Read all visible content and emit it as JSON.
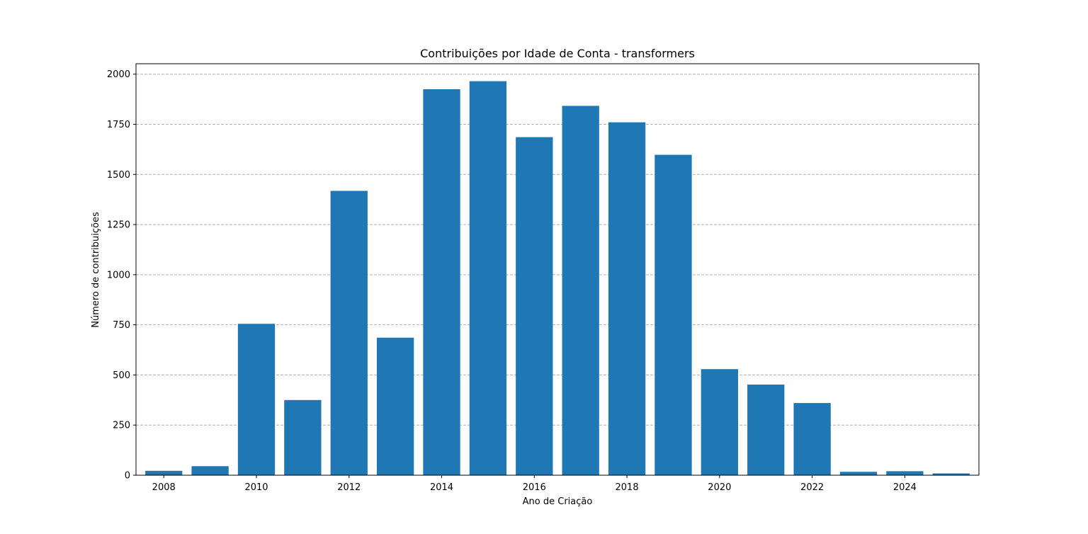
{
  "chart_data": {
    "type": "bar",
    "title": "Contribuições por Idade de Conta - transformers",
    "xlabel": "Ano de Criação",
    "ylabel": "Número de contribuições",
    "categories": [
      2008,
      2009,
      2010,
      2011,
      2012,
      2013,
      2014,
      2015,
      2016,
      2017,
      2018,
      2019,
      2020,
      2021,
      2022,
      2023,
      2024,
      2025
    ],
    "values": [
      22,
      45,
      755,
      375,
      1418,
      686,
      1925,
      1965,
      1686,
      1842,
      1760,
      1598,
      529,
      452,
      360,
      17,
      20,
      9
    ],
    "xticks": [
      "2008",
      "2010",
      "2012",
      "2014",
      "2016",
      "2018",
      "2020",
      "2022",
      "2024"
    ],
    "yticks": [
      "0",
      "250",
      "500",
      "750",
      "1000",
      "1250",
      "1500",
      "1750",
      "2000"
    ],
    "ylim": [
      0,
      2052
    ],
    "xlim": [
      2007.4,
      2025.6
    ],
    "grid": "y-dashed",
    "bar_color": "#1f77b4"
  }
}
